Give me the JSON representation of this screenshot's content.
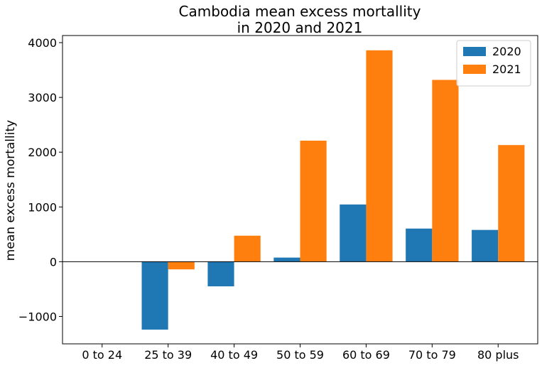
{
  "chart_data": {
    "type": "bar",
    "title_lines": [
      "Cambodia mean excess mortallity",
      "in 2020 and 2021"
    ],
    "xlabel": "",
    "ylabel": "mean excess mortallity",
    "categories": [
      "0 to 24",
      "25 to 39",
      "40 to 49",
      "50 to 59",
      "60 to 69",
      "70 to 79",
      "80 plus"
    ],
    "series": [
      {
        "name": "2020",
        "color": "#1f77b4",
        "values": [
          0,
          -1240,
          -450,
          75,
          1045,
          605,
          580
        ]
      },
      {
        "name": "2021",
        "color": "#ff7f0e",
        "values": [
          0,
          -140,
          475,
          2210,
          3860,
          3320,
          2130
        ]
      }
    ],
    "ylim": [
      -1500,
      4130
    ],
    "yticks": [
      -1000,
      0,
      1000,
      2000,
      3000,
      4000
    ],
    "ytick_labels": [
      "−1000",
      "0",
      "1000",
      "2000",
      "3000",
      "4000"
    ],
    "zero_line": true,
    "grid": false,
    "legend_position": "top-right"
  }
}
